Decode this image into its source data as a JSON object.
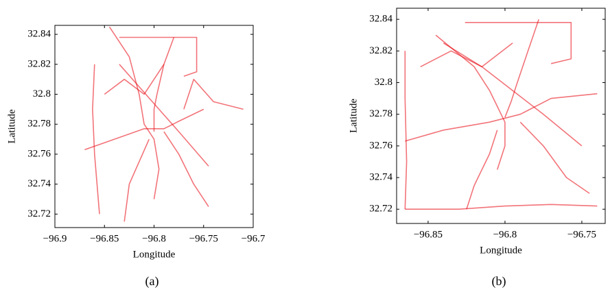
{
  "chart_data": [
    {
      "type": "line",
      "caption": "(a)",
      "x_label": "Longitude",
      "y_label": "Latitude",
      "xlim": [
        -96.9,
        -96.7
      ],
      "ylim": [
        32.711,
        32.846
      ],
      "xticks": [
        {
          "value": -96.9,
          "label": "−96.9"
        },
        {
          "value": -96.85,
          "label": "−96.85"
        },
        {
          "value": -96.8,
          "label": "−96.8"
        },
        {
          "value": -96.75,
          "label": "−96.75"
        },
        {
          "value": -96.7,
          "label": "−96.7"
        }
      ],
      "yticks": [
        32.72,
        32.74,
        32.76,
        32.78,
        32.8,
        32.82,
        32.84
      ],
      "series": [
        {
          "color": "#e8000b",
          "x": [
            -96.845,
            -96.825,
            -96.815,
            -96.81,
            -96.8,
            -96.795,
            -96.8
          ],
          "y": [
            32.845,
            32.825,
            32.8,
            32.78,
            32.77,
            32.75,
            32.73
          ]
        },
        {
          "color": "#e8000b",
          "x": [
            -96.78,
            -96.79,
            -96.797,
            -96.8,
            -96.8
          ],
          "y": [
            32.838,
            32.82,
            32.8,
            32.79,
            32.775
          ]
        },
        {
          "color": "#e8000b",
          "x": [
            -96.87,
            -96.84,
            -96.81,
            -96.79,
            -96.775,
            -96.75
          ],
          "y": [
            32.763,
            32.77,
            32.777,
            32.777,
            32.782,
            32.79
          ]
        },
        {
          "color": "#e8000b",
          "x": [
            -96.835,
            -96.757,
            -96.757,
            -96.77
          ],
          "y": [
            32.838,
            32.838,
            32.815,
            32.812
          ]
        },
        {
          "color": "#e8000b",
          "x": [
            -96.805,
            -96.815,
            -96.825,
            -96.83
          ],
          "y": [
            32.77,
            32.755,
            32.74,
            32.715
          ]
        },
        {
          "color": "#e8000b",
          "x": [
            -96.835,
            -96.815,
            -96.795,
            -96.775,
            -96.745
          ],
          "y": [
            32.82,
            32.805,
            32.79,
            32.775,
            32.752
          ]
        },
        {
          "color": "#e8000b",
          "x": [
            -96.86,
            -96.862,
            -96.86,
            -96.855
          ],
          "y": [
            32.82,
            32.79,
            32.76,
            32.72
          ]
        },
        {
          "color": "#e8000b",
          "x": [
            -96.77,
            -96.76,
            -96.74,
            -96.71
          ],
          "y": [
            32.79,
            32.81,
            32.795,
            32.79
          ]
        },
        {
          "color": "#e8000b",
          "x": [
            -96.85,
            -96.83,
            -96.81,
            -96.79
          ],
          "y": [
            32.8,
            32.81,
            32.8,
            32.82
          ]
        },
        {
          "color": "#e8000b",
          "x": [
            -96.79,
            -96.775,
            -96.76,
            -96.745
          ],
          "y": [
            32.775,
            32.76,
            32.74,
            32.725
          ]
        }
      ]
    },
    {
      "type": "line",
      "caption": "(b)",
      "x_label": "Longitude",
      "y_label": "Latitude",
      "xlim": [
        -96.8705,
        -96.7348
      ],
      "ylim": [
        32.711,
        32.847
      ],
      "xticks": [
        {
          "value": -96.85,
          "label": "−96.85"
        },
        {
          "value": -96.8,
          "label": "−96.8"
        },
        {
          "value": -96.75,
          "label": "−96.75"
        }
      ],
      "yticks": [
        32.72,
        32.74,
        32.76,
        32.78,
        32.8,
        32.82,
        32.84
      ],
      "series": [
        {
          "color": "#e8000b",
          "x": [
            -96.845,
            -96.82,
            -96.81,
            -96.805,
            -96.8,
            -96.8,
            -96.805
          ],
          "y": [
            32.83,
            32.81,
            32.795,
            32.785,
            32.775,
            32.76,
            32.745
          ]
        },
        {
          "color": "#e8000b",
          "x": [
            -96.778,
            -96.785,
            -96.792,
            -96.796,
            -96.8
          ],
          "y": [
            32.84,
            32.82,
            32.8,
            32.788,
            32.778
          ]
        },
        {
          "color": "#e8000b",
          "x": [
            -96.865,
            -96.84,
            -96.81,
            -96.79,
            -96.77,
            -96.74
          ],
          "y": [
            32.763,
            32.77,
            32.775,
            32.78,
            32.79,
            32.793
          ]
        },
        {
          "color": "#e8000b",
          "x": [
            -96.826,
            -96.757,
            -96.757,
            -96.77
          ],
          "y": [
            32.838,
            32.838,
            32.815,
            32.812
          ]
        },
        {
          "color": "#e8000b",
          "x": [
            -96.805,
            -96.81,
            -96.82,
            -96.825
          ],
          "y": [
            32.77,
            32.755,
            32.735,
            32.72
          ]
        },
        {
          "color": "#e8000b",
          "x": [
            -96.84,
            -96.815,
            -96.795,
            -96.775,
            -96.75
          ],
          "y": [
            32.825,
            32.81,
            32.795,
            32.78,
            32.76
          ]
        },
        {
          "color": "#e8000b",
          "x": [
            -96.865,
            -96.865,
            -96.864,
            -96.865
          ],
          "y": [
            32.82,
            32.79,
            32.75,
            32.72
          ]
        },
        {
          "color": "#e8000b",
          "x": [
            -96.865,
            -96.83,
            -96.8,
            -96.77,
            -96.74
          ],
          "y": [
            32.72,
            32.72,
            32.722,
            32.723,
            32.722
          ]
        },
        {
          "color": "#e8000b",
          "x": [
            -96.79,
            -96.775,
            -96.76,
            -96.745
          ],
          "y": [
            32.775,
            32.76,
            32.74,
            32.73
          ]
        },
        {
          "color": "#e8000b",
          "x": [
            -96.855,
            -96.835,
            -96.815,
            -96.795
          ],
          "y": [
            32.81,
            32.82,
            32.81,
            32.825
          ]
        }
      ]
    }
  ]
}
